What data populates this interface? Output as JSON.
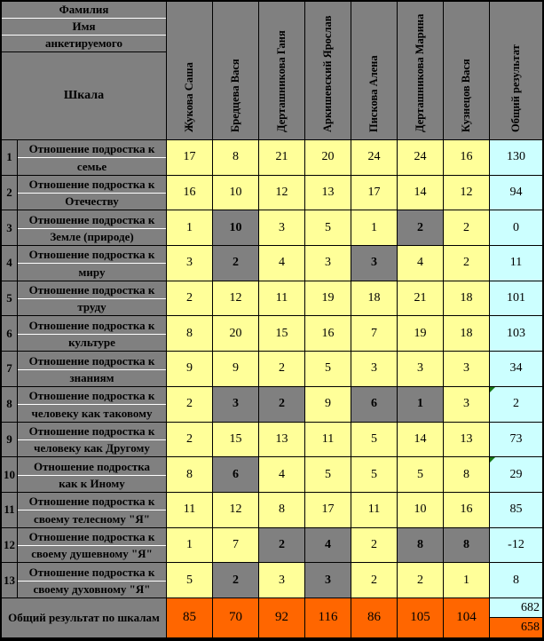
{
  "table": {
    "corner": {
      "line1": "Фамилия",
      "line2": "Имя",
      "line3": "анкетируемого",
      "scale_label": "Шкала"
    },
    "columns": [
      "Жукова Саша",
      "Бредцева Вася",
      "Дерташникова Ганя",
      "Аркишевский Ярослав",
      "Пискова Алена",
      "Дерташникова Марина",
      "Кузнецов Вася"
    ],
    "total_column_label": "Общий результат",
    "rows": [
      {
        "num": "1",
        "label_line1": "Отношение подростка к",
        "label_line2": "семье",
        "values": [
          17,
          8,
          21,
          20,
          24,
          24,
          16
        ],
        "gray": [
          0,
          0,
          0,
          0,
          0,
          0,
          0
        ],
        "total": "130",
        "flag": false
      },
      {
        "num": "2",
        "label_line1": "Отношение подростка к",
        "label_line2": "Отечеству",
        "values": [
          16,
          10,
          12,
          13,
          17,
          14,
          12
        ],
        "gray": [
          0,
          0,
          0,
          0,
          0,
          0,
          0
        ],
        "total": "94",
        "flag": false
      },
      {
        "num": "3",
        "label_line1": "Отношение подростка к",
        "label_line2": "Земле  (природе)",
        "values": [
          1,
          10,
          3,
          5,
          1,
          2,
          2
        ],
        "gray": [
          0,
          1,
          0,
          0,
          0,
          1,
          0
        ],
        "total": "0",
        "flag": false
      },
      {
        "num": "4",
        "label_line1": "Отношение подростка к",
        "label_line2": "миру",
        "values": [
          3,
          2,
          4,
          3,
          3,
          4,
          2
        ],
        "gray": [
          0,
          1,
          0,
          0,
          1,
          0,
          0
        ],
        "total": "11",
        "flag": false
      },
      {
        "num": "5",
        "label_line1": "Отношение подростка к",
        "label_line2": "труду",
        "values": [
          2,
          12,
          11,
          19,
          18,
          21,
          18
        ],
        "gray": [
          0,
          0,
          0,
          0,
          0,
          0,
          0
        ],
        "total": "101",
        "flag": false
      },
      {
        "num": "6",
        "label_line1": "Отношение подростка к",
        "label_line2": "культуре",
        "values": [
          8,
          20,
          15,
          16,
          7,
          19,
          18
        ],
        "gray": [
          0,
          0,
          0,
          0,
          0,
          0,
          0
        ],
        "total": "103",
        "flag": false
      },
      {
        "num": "7",
        "label_line1": "Отношение подростка к",
        "label_line2": "знаниям",
        "values": [
          9,
          9,
          2,
          5,
          3,
          3,
          3
        ],
        "gray": [
          0,
          0,
          0,
          0,
          0,
          0,
          0
        ],
        "total": "34",
        "flag": false
      },
      {
        "num": "8",
        "label_line1": "Отношение подростка к",
        "label_line2": "человеку как таковому",
        "values": [
          2,
          3,
          2,
          9,
          6,
          1,
          3
        ],
        "gray": [
          0,
          1,
          1,
          0,
          1,
          1,
          0
        ],
        "total": "2",
        "flag": true
      },
      {
        "num": "9",
        "label_line1": "Отношение подростка к",
        "label_line2": "человеку как Другому",
        "values": [
          2,
          15,
          13,
          11,
          5,
          14,
          13
        ],
        "gray": [
          0,
          0,
          0,
          0,
          0,
          0,
          0
        ],
        "total": "73",
        "flag": false
      },
      {
        "num": "10",
        "label_line1": "Отношение подростка",
        "label_line2": "как к Иному",
        "values": [
          8,
          6,
          4,
          5,
          5,
          5,
          8
        ],
        "gray": [
          0,
          1,
          0,
          0,
          0,
          0,
          0
        ],
        "total": "29",
        "flag": true
      },
      {
        "num": "11",
        "label_line1": "Отношение подростка к",
        "label_line2": "своему телесному \"Я\"",
        "values": [
          11,
          12,
          8,
          17,
          11,
          10,
          16
        ],
        "gray": [
          0,
          0,
          0,
          0,
          0,
          0,
          0
        ],
        "total": "85",
        "flag": false
      },
      {
        "num": "12",
        "label_line1": "Отношение подростка к",
        "label_line2": "своему душевному \"Я\"",
        "values": [
          1,
          7,
          2,
          4,
          2,
          8,
          8
        ],
        "gray": [
          0,
          0,
          1,
          1,
          0,
          1,
          1
        ],
        "total": "-12",
        "flag": false
      },
      {
        "num": "13",
        "label_line1": "Отношение подростка к",
        "label_line2": "своему духовному \"Я\"",
        "values": [
          5,
          2,
          3,
          3,
          2,
          2,
          1
        ],
        "gray": [
          0,
          1,
          0,
          1,
          0,
          0,
          0
        ],
        "total": "8",
        "flag": false
      }
    ],
    "footer": {
      "label": "Общий результат по шкалам",
      "values": [
        85,
        70,
        92,
        116,
        86,
        105,
        104
      ],
      "grand_total_top": "682",
      "grand_total_bottom": "658"
    },
    "colors": {
      "gray": "#808080",
      "yellow": "#FFFF99",
      "cyan": "#CCFFFF",
      "orange": "#FF6600",
      "flag_green": "#157815"
    }
  }
}
